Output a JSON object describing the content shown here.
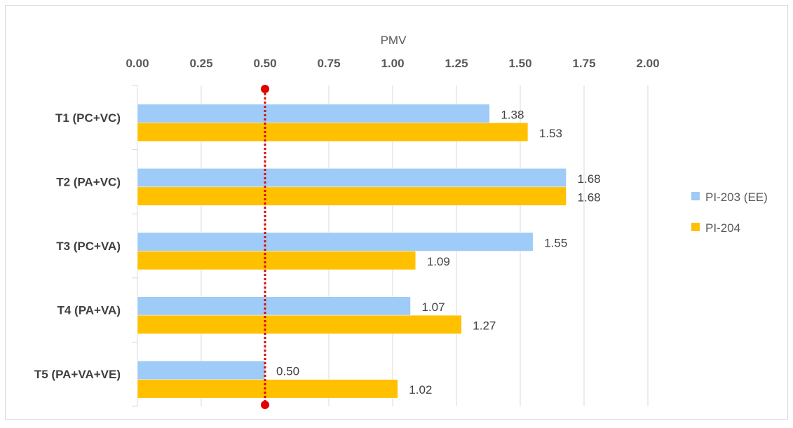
{
  "chart_data": {
    "type": "bar",
    "orientation": "horizontal",
    "xlabel": "PMV",
    "xlim": [
      0,
      2
    ],
    "xticks": [
      "0.00",
      "0.25",
      "0.50",
      "0.75",
      "1.00",
      "1.25",
      "1.50",
      "1.75",
      "2.00"
    ],
    "xtick_values": [
      0,
      0.25,
      0.5,
      0.75,
      1.0,
      1.25,
      1.5,
      1.75,
      2.0
    ],
    "x_axis_position": "top",
    "grid": true,
    "categories": [
      "T1  (PC+VC)",
      "T2 (PA+VC)",
      "T3 (PC+VA)",
      "T4  (PA+VA)",
      "T5 (PA+VA+VE)"
    ],
    "series": [
      {
        "name": "PI-203 (EE)",
        "color": "#9ECBF7",
        "values": [
          1.38,
          1.68,
          1.55,
          1.07,
          0.5
        ],
        "labels": [
          "1.38",
          "1.68",
          "1.55",
          "1.07",
          "0.50"
        ]
      },
      {
        "name": "PI-204",
        "color": "#FFC000",
        "values": [
          1.53,
          1.68,
          1.09,
          1.27,
          1.02
        ],
        "labels": [
          "1.53",
          "1.68",
          "1.09",
          "1.27",
          "1.02"
        ]
      }
    ],
    "reference_line": {
      "value": 0.5,
      "color": "#E00000",
      "style": "dotted"
    },
    "legend": {
      "position": "right"
    }
  }
}
